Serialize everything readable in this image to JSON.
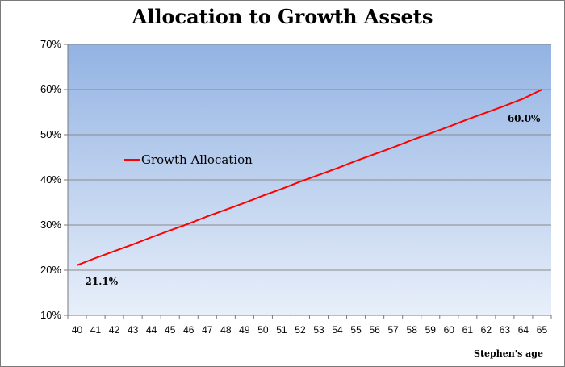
{
  "chart_data": {
    "type": "line",
    "title": "Allocation to Growth Assets",
    "xlabel": "Stephen's age",
    "ylabel": "",
    "ylim": [
      10,
      70
    ],
    "y_ticks": [
      "10%",
      "20%",
      "30%",
      "40%",
      "50%",
      "60%",
      "70%"
    ],
    "grid": true,
    "legend_position": "left-middle",
    "categories": [
      "40",
      "41",
      "42",
      "43",
      "44",
      "45",
      "46",
      "47",
      "48",
      "49",
      "50",
      "51",
      "52",
      "53",
      "54",
      "55",
      "56",
      "57",
      "58",
      "59",
      "60",
      "61",
      "62",
      "63",
      "64",
      "65"
    ],
    "series": [
      {
        "name": "Growth Allocation",
        "color": "#ff0000",
        "values": [
          21.1,
          22.7,
          24.2,
          25.7,
          27.3,
          28.8,
          30.3,
          31.9,
          33.4,
          34.9,
          36.5,
          38.0,
          39.6,
          41.1,
          42.6,
          44.2,
          45.7,
          47.2,
          48.8,
          50.3,
          51.8,
          53.4,
          54.9,
          56.4,
          58.0,
          60.0
        ]
      }
    ],
    "annotations": [
      "21.1%",
      "60.0%"
    ],
    "plot_background": [
      "#93b3e3",
      "#e8effa"
    ]
  }
}
